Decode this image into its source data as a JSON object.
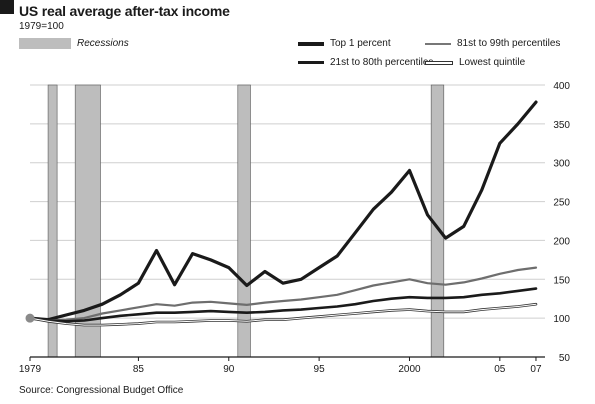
{
  "header": {
    "title": "US real average after-tax income",
    "subtitle": "1979=100",
    "recessions_label": "Recessions",
    "source": "Source: Congressional Budget Office"
  },
  "colors": {
    "recession": "#bdbdbd",
    "grid": "#cfcfcf",
    "ink": "#1a1a1a"
  },
  "chart_data": {
    "type": "line",
    "title": "US real average after-tax income",
    "subtitle": "1979=100",
    "xlabel": "",
    "ylabel": "",
    "x": [
      1979,
      1980,
      1981,
      1982,
      1983,
      1984,
      1985,
      1986,
      1987,
      1988,
      1989,
      1990,
      1991,
      1992,
      1993,
      1994,
      1995,
      1996,
      1997,
      1998,
      1999,
      2000,
      2001,
      2002,
      2003,
      2004,
      2005,
      2006,
      2007
    ],
    "xlim": [
      1979,
      2007.5
    ],
    "ylim": [
      50,
      400
    ],
    "x_ticks": [
      1979,
      1985,
      1990,
      1995,
      2000,
      2005,
      2007
    ],
    "x_tick_labels": [
      "1979",
      "85",
      "90",
      "95",
      "2000",
      "05",
      "07"
    ],
    "y_ticks": [
      50,
      100,
      150,
      200,
      250,
      300,
      350,
      400
    ],
    "y_tick_labels": [
      "50",
      "100",
      "150",
      "200",
      "250",
      "300",
      "350",
      "400"
    ],
    "grid": true,
    "y_axis_position": "right",
    "recessions": [
      [
        1980.0,
        1980.5
      ],
      [
        1981.5,
        1982.9
      ],
      [
        1990.5,
        1991.2
      ],
      [
        2001.2,
        2001.9
      ]
    ],
    "series": [
      {
        "name": "Top 1 percent",
        "style": "thick-solid",
        "values": [
          100,
          98,
          104,
          110,
          118,
          130,
          145,
          187,
          143,
          183,
          175,
          165,
          142,
          160,
          145,
          150,
          165,
          180,
          210,
          240,
          262,
          290,
          233,
          203,
          218,
          265,
          325,
          350,
          378
        ]
      },
      {
        "name": "81st to 99th percentiles",
        "style": "thin-grey",
        "values": [
          100,
          97,
          98,
          100,
          106,
          110,
          114,
          118,
          116,
          120,
          121,
          119,
          117,
          120,
          122,
          124,
          127,
          130,
          136,
          142,
          146,
          150,
          145,
          143,
          146,
          151,
          157,
          162,
          165
        ]
      },
      {
        "name": "21st to 80th percentiles",
        "style": "medium-solid",
        "values": [
          100,
          97,
          96,
          97,
          100,
          103,
          105,
          107,
          107,
          108,
          109,
          108,
          107,
          108,
          110,
          111,
          113,
          115,
          118,
          122,
          125,
          127,
          126,
          126,
          127,
          130,
          132,
          135,
          138
        ]
      },
      {
        "name": "Lowest quintile",
        "style": "thin-outline",
        "values": [
          100,
          96,
          93,
          91,
          91,
          92,
          93,
          95,
          95,
          96,
          97,
          97,
          96,
          98,
          98,
          100,
          102,
          104,
          106,
          108,
          110,
          111,
          109,
          108,
          108,
          111,
          113,
          115,
          118
        ]
      }
    ],
    "legend_placement": "top-right",
    "legend": [
      "Top 1 percent",
      "81st to 99th percentiles",
      "21st to 80th percentiles",
      "Lowest quintile"
    ]
  }
}
